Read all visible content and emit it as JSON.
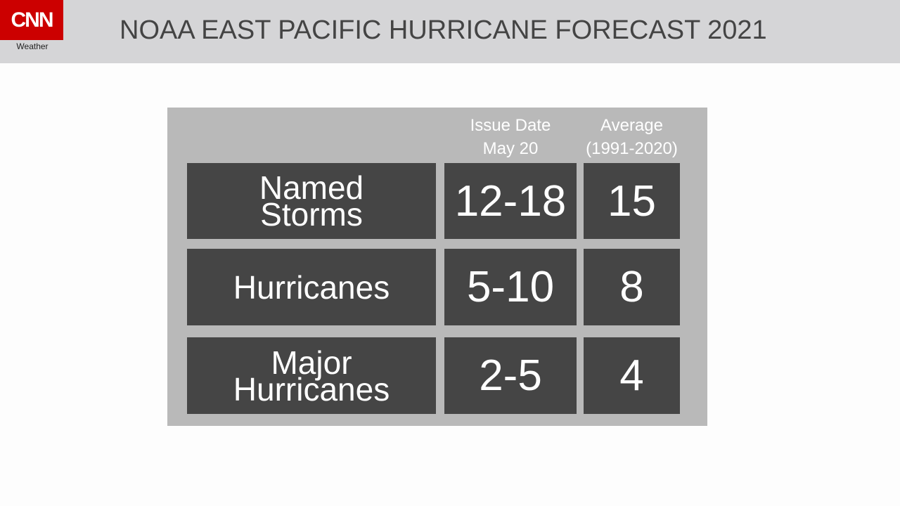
{
  "header": {
    "logo": "CNN",
    "logo_sub": "Weather",
    "title": "NOAA EAST PACIFIC HURRICANE FORECAST 2021"
  },
  "table": {
    "columns": [
      [
        "Issue Date",
        "May 20"
      ],
      [
        "Average",
        "(1991-2020)"
      ]
    ],
    "rows": [
      [
        [
          "Named",
          "Storms"
        ],
        "12-18",
        "15"
      ],
      [
        [
          "Hurricanes"
        ],
        "5-10",
        "8"
      ],
      [
        [
          "Major",
          "Hurricanes"
        ],
        "2-5",
        "4"
      ]
    ]
  }
}
